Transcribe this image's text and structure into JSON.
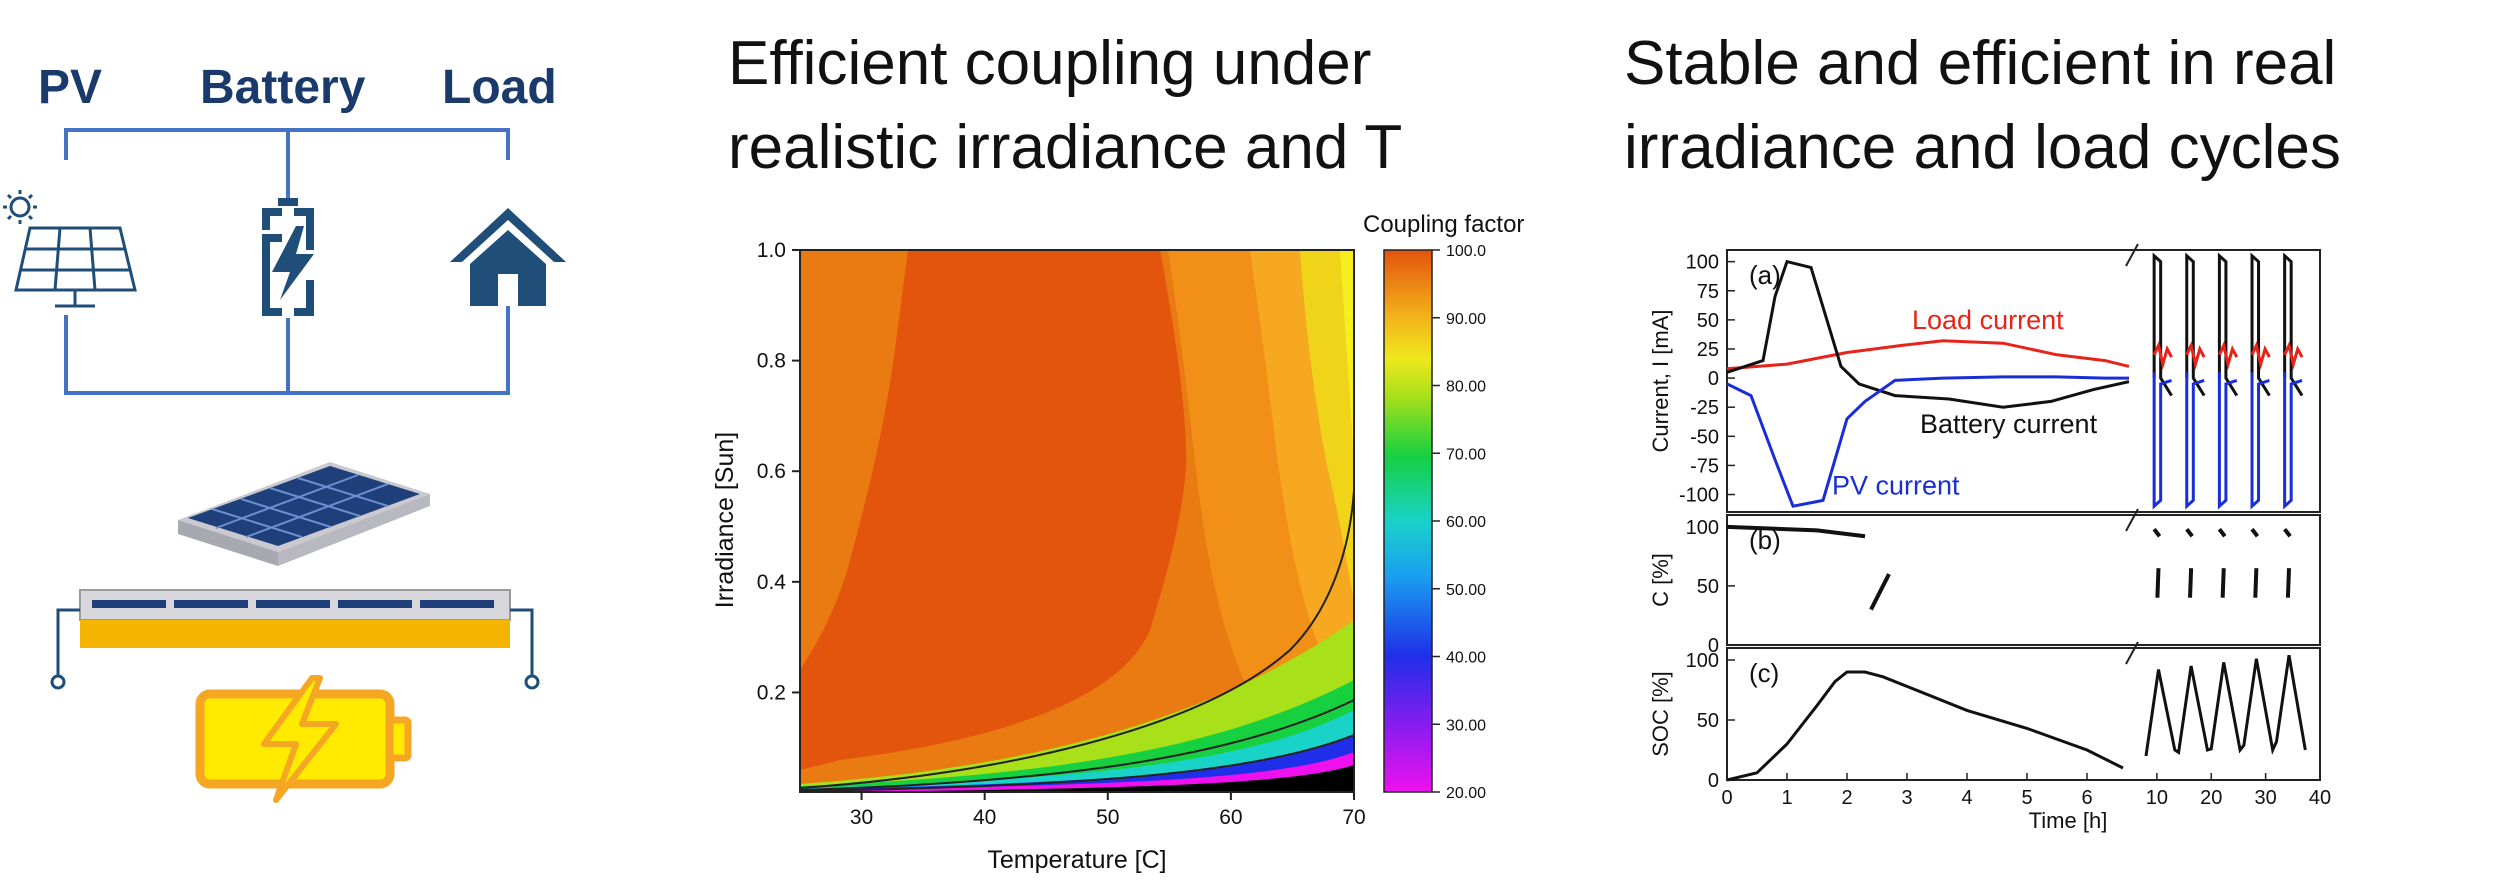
{
  "titles": {
    "middle_line1": "Efficient coupling under",
    "middle_line2": "realistic irradiance and T",
    "right_line1": "Stable and efficient in real",
    "right_line2": "irradiance and load cycles"
  },
  "schematic": {
    "labels": [
      "PV",
      "Battery",
      "Load"
    ],
    "icons": [
      "solar-panel-icon",
      "battery-charging-icon",
      "house-icon",
      "solar-module-on-battery-illustration",
      "charging-battery-icon"
    ],
    "colors": {
      "wire": "#4472c4",
      "label": "#1a3a6b",
      "icon": "#1f4e79",
      "battery_fill": "#ffcc00",
      "battery_outline": "#f5a623"
    }
  },
  "chart_data": [
    {
      "type": "heatmap",
      "title": "",
      "xlabel": "Temperature [C]",
      "ylabel": "Irradiance [Sun]",
      "colorbar_label": "Coupling factor",
      "xlim": [
        25,
        70
      ],
      "ylim": [
        0.02,
        1.0
      ],
      "x_ticks": [
        30,
        40,
        50,
        60,
        70
      ],
      "y_ticks": [
        0.2,
        0.4,
        0.6,
        0.8,
        1.0
      ],
      "y_tick_labels": [
        "0.2",
        "0.4",
        "0.6",
        "0.8",
        "1.0"
      ],
      "colorbar_range": [
        20,
        100
      ],
      "colorbar_ticks": [
        20,
        30,
        40,
        50,
        60,
        70,
        80,
        90,
        100
      ],
      "colorbar_tick_labels": [
        "20.00",
        "30.00",
        "40.00",
        "50.00",
        "60.00",
        "70.00",
        "80.00",
        "90.00",
        "100.0"
      ],
      "z_description": "maximum (~99) at 35-55 C and moderate-high irradiance, decreasing toward high temperature and toward low irradiance (black below 20 at lowest irradiance, highest temperature)"
    },
    {
      "type": "line",
      "xlabel": "Time [h]",
      "x_ticks_left": [
        0,
        1,
        2,
        3,
        4,
        5,
        6
      ],
      "x_ticks_right": [
        10,
        20,
        30,
        40
      ],
      "panels": [
        {
          "id": "(a)",
          "ylabel": "Current, I [mA]",
          "ylim": [
            -115,
            110
          ],
          "y_ticks": [
            100,
            75,
            50,
            25,
            0,
            -25,
            -50,
            -75,
            -100
          ],
          "y_tick_labels": [
            "100",
            "75",
            "50",
            "25",
            "0",
            "-25",
            "-50",
            "-75",
            "-100"
          ],
          "series": [
            {
              "name": "Load current",
              "color": "#e8231a",
              "x": [
                0,
                1,
                2,
                2.9,
                3.6,
                4.6,
                5.5,
                6.3,
                6.7
              ],
              "y": [
                8,
                12,
                22,
                28,
                32,
                30,
                20,
                15,
                10
              ]
            },
            {
              "name": "Battery current",
              "color": "#111111",
              "x": [
                0,
                0.6,
                0.8,
                1.0,
                1.4,
                1.9,
                2.2,
                2.8,
                3.7,
                4.6,
                5.4,
                6.1,
                6.7
              ],
              "y": [
                5,
                15,
                70,
                100,
                95,
                10,
                -5,
                -15,
                -18,
                -25,
                -20,
                -10,
                -3
              ]
            },
            {
              "name": "PV current",
              "color": "#1a2ed6",
              "x": [
                0,
                0.4,
                0.8,
                1.1,
                1.6,
                2.0,
                2.3,
                2.8,
                3.6,
                4.6,
                5.5,
                6.3,
                6.7
              ],
              "y": [
                -5,
                -15,
                -70,
                -110,
                -105,
                -35,
                -20,
                -2,
                0,
                1,
                1,
                0,
                0
              ]
            }
          ]
        },
        {
          "id": "(b)",
          "ylabel": "C [%]",
          "ylim": [
            0,
            110
          ],
          "y_ticks": [
            0,
            50,
            100
          ],
          "y_tick_labels": [
            "0",
            "50",
            "100"
          ]
        },
        {
          "id": "(c)",
          "ylabel": "SOC [%]",
          "ylim": [
            0,
            110
          ],
          "y_ticks": [
            0,
            50,
            100
          ],
          "y_tick_labels": [
            "0",
            "50",
            "100"
          ],
          "series": [
            {
              "name": "",
              "color": "#111111",
              "x": [
                0,
                0.5,
                1,
                1.5,
                1.8,
                2.0,
                2.3,
                2.6,
                3,
                4,
                5,
                6,
                6.6
              ],
              "y": [
                0,
                6,
                30,
                62,
                82,
                90,
                90,
                86,
                78,
                58,
                43,
                25,
                10
              ]
            }
          ]
        }
      ]
    }
  ]
}
